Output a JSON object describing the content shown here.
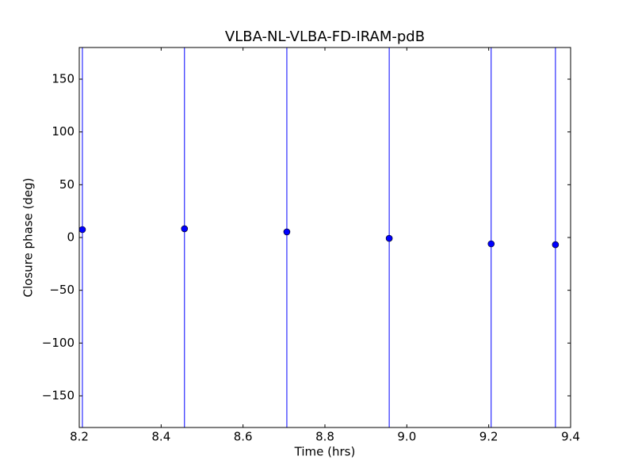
{
  "chart_data": {
    "type": "errorbar",
    "title": "VLBA-NL-VLBA-FD-IRAM-pdB",
    "xlabel": "Time (hrs)",
    "ylabel": "Closure phase (deg)",
    "x": [
      8.2077,
      8.457,
      8.707,
      8.957,
      9.206,
      9.363
    ],
    "values": [
      7.5,
      8.3,
      5.3,
      -0.8,
      -6,
      -6.8
    ],
    "errors": [
      190,
      190,
      190,
      190,
      190,
      190
    ],
    "color": "#0000ff",
    "xlim": [
      8.2,
      9.4
    ],
    "ylim": [
      -180,
      180
    ],
    "xticks": [
      8.2,
      8.4,
      8.6,
      8.8,
      {
        "value": 9,
        "label": "9.0"
      },
      9.2,
      9.4
    ],
    "yticks": [
      {
        "value": -150,
        "label": "−150"
      },
      {
        "value": -100,
        "label": "−100"
      },
      {
        "value": -50,
        "label": "−50"
      },
      0,
      50,
      100,
      150
    ]
  }
}
